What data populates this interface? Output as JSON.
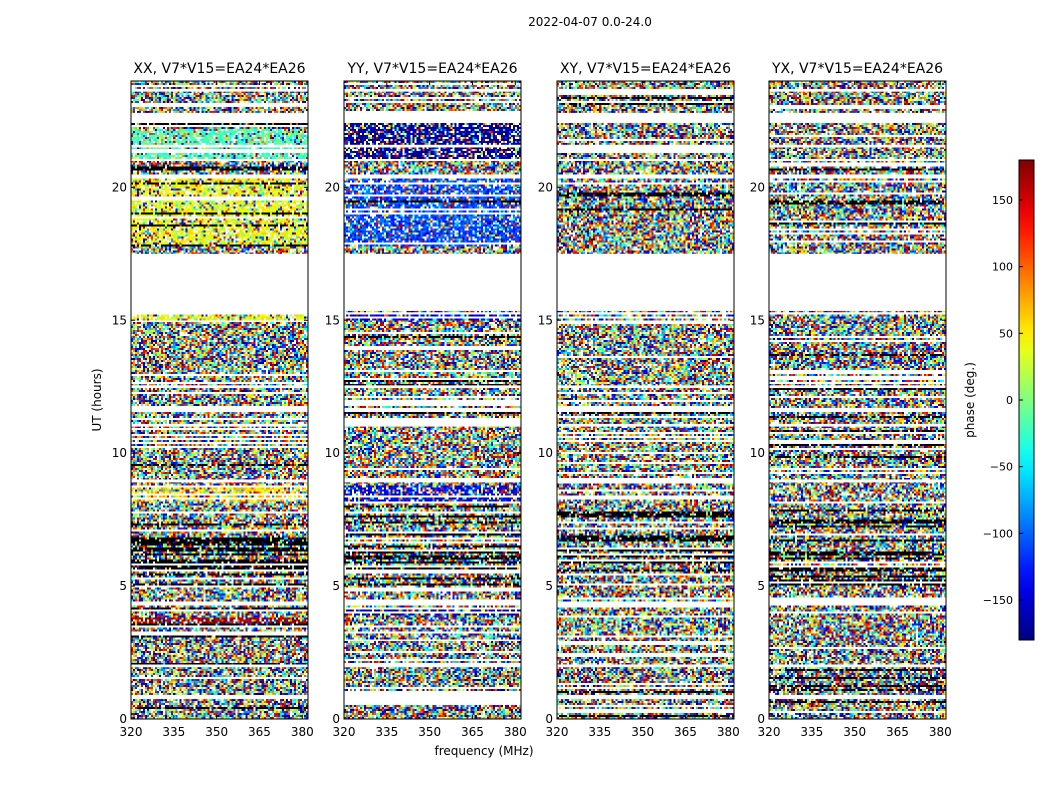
{
  "figure": {
    "suptitle": "2022-04-07 0.0-24.0",
    "xlabel": "frequency (MHz)",
    "ylabel": "UT (hours)"
  },
  "chart_data": {
    "type": "heatmap",
    "x_range": [
      320,
      382
    ],
    "y_range": [
      0,
      24
    ],
    "x_ticks": [
      320,
      335,
      350,
      365,
      380
    ],
    "y_ticks": [
      0,
      5,
      10,
      15,
      20
    ],
    "panels": [
      {
        "title": "XX, V7*V15=EA24*EA26",
        "dominant_phase": [
          [
            0,
            0.9,
            null
          ],
          [
            2,
            2.1,
            -130
          ],
          [
            3.6,
            3.8,
            170
          ],
          [
            8.2,
            8.8,
            60
          ],
          [
            15.0,
            15.2,
            40
          ],
          [
            17.8,
            20.3,
            40
          ],
          [
            21.0,
            22.2,
            -20
          ]
        ]
      },
      {
        "title": "YY, V7*V15=EA24*EA26",
        "dominant_phase": [
          [
            2,
            2.1,
            140
          ],
          [
            3.9,
            4.2,
            -160
          ],
          [
            8.2,
            8.8,
            -140
          ],
          [
            15.0,
            15.2,
            -150
          ],
          [
            17.8,
            20.3,
            -110
          ],
          [
            21.0,
            22.5,
            -170
          ]
        ]
      },
      {
        "title": "XY, V7*V15=EA24*EA26",
        "dominant_phase": []
      },
      {
        "title": "YX, V7*V15=EA24*EA26",
        "dominant_phase": []
      }
    ],
    "flagged_ut_ranges": [
      [
        0.75,
        0.9
      ],
      [
        1.95,
        2.05
      ],
      [
        4.3,
        4.4
      ],
      [
        8.9,
        9.0
      ],
      [
        11.0,
        11.1
      ],
      [
        11.55,
        11.7
      ],
      [
        12.45,
        12.55
      ],
      [
        15.25,
        15.3
      ],
      [
        15.35,
        17.5
      ],
      [
        20.35,
        20.45
      ],
      [
        21.0,
        21.05
      ],
      [
        21.5,
        21.6
      ],
      [
        22.45,
        22.8
      ],
      [
        23.6,
        23.7
      ]
    ],
    "colorbar": {
      "label": "phase (deg.)",
      "range": [
        -180,
        180
      ],
      "ticks": [
        -150,
        -100,
        -50,
        0,
        50,
        100,
        150
      ],
      "tick_labels": [
        "−150",
        "−100",
        "−50",
        "0",
        "50",
        "100",
        "150"
      ],
      "colormap": "jet"
    }
  }
}
